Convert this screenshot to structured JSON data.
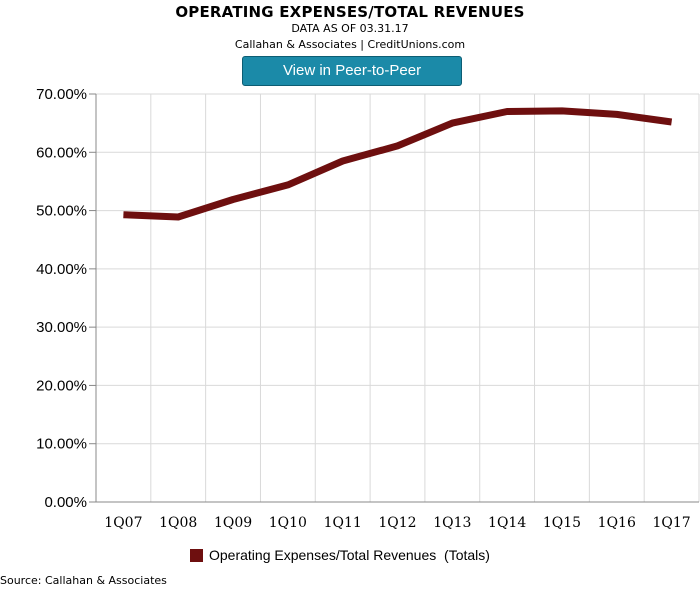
{
  "header": {
    "title": "OPERATING EXPENSES/TOTAL REVENUES",
    "subtitle": "DATA AS OF 03.31.17",
    "credit": "Callahan & Associates | CreditUnions.com"
  },
  "button": {
    "label": "View in Peer-to-Peer"
  },
  "footer": {
    "source": "Source: Callahan & Associates"
  },
  "colors": {
    "series": "#6e0f0f",
    "button_bg": "#1b8aa8",
    "grid": "#d9d9d9"
  },
  "chart_data": {
    "type": "line",
    "title": "OPERATING EXPENSES/TOTAL REVENUES",
    "subtitle": "DATA AS OF 03.31.17",
    "xlabel": "",
    "ylabel": "",
    "categories": [
      "1Q07",
      "1Q08",
      "1Q09",
      "1Q10",
      "1Q11",
      "1Q12",
      "1Q13",
      "1Q14",
      "1Q15",
      "1Q16",
      "1Q17"
    ],
    "series": [
      {
        "name": "Operating Expenses/Total Revenues  (Totals)",
        "values": [
          49.3,
          48.9,
          51.9,
          54.4,
          58.5,
          61.1,
          65.0,
          67.0,
          67.1,
          66.5,
          65.2
        ]
      }
    ],
    "ylim": [
      0,
      70
    ],
    "yticks": [
      "0.00%",
      "10.00%",
      "20.00%",
      "30.00%",
      "40.00%",
      "50.00%",
      "60.00%",
      "70.00%"
    ],
    "grid": "vertical-and-horizontal",
    "legend": "bottom-center"
  }
}
